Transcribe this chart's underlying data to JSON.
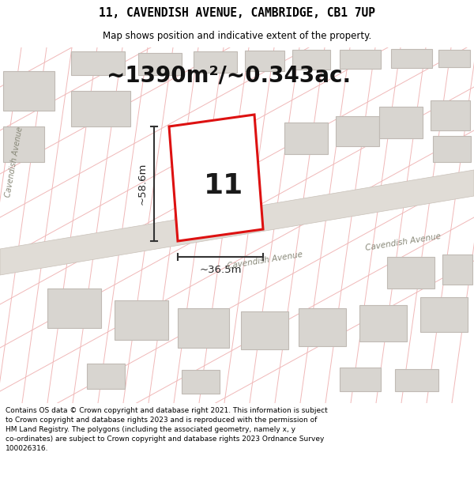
{
  "title": "11, CAVENDISH AVENUE, CAMBRIDGE, CB1 7UP",
  "subtitle": "Map shows position and indicative extent of the property.",
  "area_text": "~1390m²/~0.343ac.",
  "property_number": "11",
  "dim_width": "~36.5m",
  "dim_height": "~58.6m",
  "road_label_mid": "Cavendish Avenue",
  "road_label_right": "Cavendish Avenue",
  "road_label_left_top": "Cav",
  "road_label_left_mid": "endish",
  "road_label_left_bot": "Avenue",
  "footer_line1": "Contains OS data © Crown copyright and database right 2021. This information is subject",
  "footer_line2": "to Crown copyright and database rights 2023 and is reproduced with the permission of",
  "footer_line3": "HM Land Registry. The polygons (including the associated geometry, namely x, y",
  "footer_line4": "co-ordinates) are subject to Crown copyright and database rights 2023 Ordnance Survey",
  "footer_line5": "100026316.",
  "bg_white": "#ffffff",
  "map_bg": "#f8f6f4",
  "road_fill": "#e0dcd6",
  "road_line": "#c8c0b8",
  "grid_v_color": "#f0b8b8",
  "grid_d_color": "#f0b8b8",
  "building_fill": "#d8d5d0",
  "building_edge": "#c0bab4",
  "prop_edge": "#dd1111",
  "prop_fill": "#ffffff",
  "number_color": "#1a1a1a",
  "dim_color": "#222222",
  "area_color": "#111111",
  "road_text_color": "#888878"
}
